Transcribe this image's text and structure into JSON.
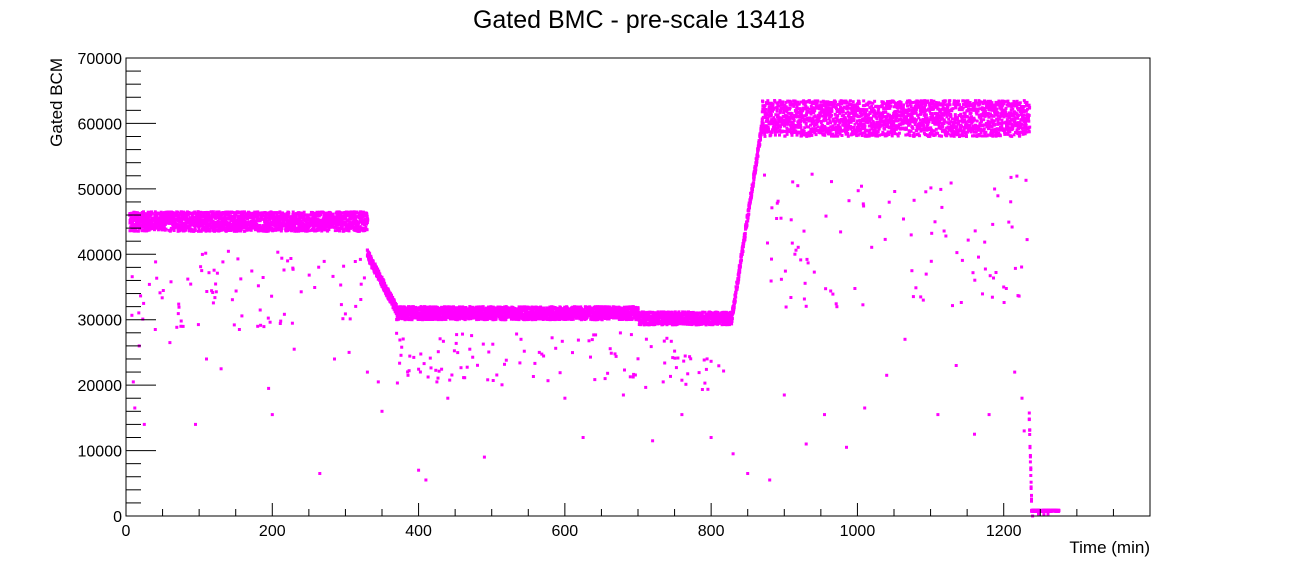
{
  "chart_data": {
    "type": "scatter",
    "title": "Gated BMC - pre-scale 13418",
    "xlabel": "Time (min)",
    "ylabel": "Gated BCM",
    "xlim": [
      0,
      1400
    ],
    "ylim": [
      0,
      70000
    ],
    "x_ticks": [
      0,
      200,
      400,
      600,
      800,
      1000,
      1200
    ],
    "y_ticks": [
      0,
      10000,
      20000,
      30000,
      40000,
      50000,
      60000,
      70000
    ],
    "grid": false,
    "legend": "none",
    "marker_color": "#ff00ff",
    "segments": [
      {
        "x_start": 5,
        "x_end": 330,
        "level": 45000,
        "band": [
          43500,
          46500
        ]
      },
      {
        "x_start": 330,
        "x_end": 370,
        "level_start": 40000,
        "level_end": 31500
      },
      {
        "x_start": 370,
        "x_end": 700,
        "level": 31000,
        "band": [
          30000,
          32000
        ]
      },
      {
        "x_start": 700,
        "x_end": 828,
        "level": 30200,
        "band": [
          29200,
          31200
        ]
      },
      {
        "x_start": 828,
        "x_end": 870,
        "level_start": 30000,
        "level_end": 60000
      },
      {
        "x_start": 870,
        "x_end": 1235,
        "level": 61000,
        "band": [
          58000,
          63500
        ]
      },
      {
        "x_start": 1235,
        "x_end": 1238,
        "level_start": 15000,
        "level_end": 2500
      },
      {
        "x_start": 1238,
        "x_end": 1275,
        "level": 800,
        "band": [
          700,
          900
        ]
      }
    ],
    "outliers": [
      [
        10,
        20500
      ],
      [
        12,
        16500
      ],
      [
        18,
        26000
      ],
      [
        25,
        14000
      ],
      [
        40,
        28500
      ],
      [
        60,
        26500
      ],
      [
        75,
        29000
      ],
      [
        95,
        14000
      ],
      [
        110,
        24000
      ],
      [
        130,
        22500
      ],
      [
        155,
        28500
      ],
      [
        180,
        29000
      ],
      [
        195,
        19500
      ],
      [
        200,
        15500
      ],
      [
        230,
        25500
      ],
      [
        265,
        6500
      ],
      [
        285,
        24000
      ],
      [
        305,
        25000
      ],
      [
        330,
        22000
      ],
      [
        345,
        20500
      ],
      [
        350,
        16000
      ],
      [
        400,
        7000
      ],
      [
        410,
        5500
      ],
      [
        425,
        20500
      ],
      [
        440,
        18000
      ],
      [
        470,
        25500
      ],
      [
        490,
        9000
      ],
      [
        540,
        27000
      ],
      [
        565,
        25000
      ],
      [
        600,
        18000
      ],
      [
        625,
        12000
      ],
      [
        655,
        21000
      ],
      [
        680,
        18500
      ],
      [
        720,
        11500
      ],
      [
        760,
        15500
      ],
      [
        800,
        12000
      ],
      [
        830,
        9500
      ],
      [
        850,
        6500
      ],
      [
        880,
        5500
      ],
      [
        900,
        18500
      ],
      [
        930,
        11000
      ],
      [
        955,
        15500
      ],
      [
        985,
        10500
      ],
      [
        1010,
        16500
      ],
      [
        1040,
        21500
      ],
      [
        1065,
        27000
      ],
      [
        1090,
        33000
      ],
      [
        1110,
        15500
      ],
      [
        1135,
        23000
      ],
      [
        1160,
        12500
      ],
      [
        1180,
        15500
      ],
      [
        1200,
        35000
      ],
      [
        1215,
        22000
      ],
      [
        1225,
        18000
      ],
      [
        1228,
        13000
      ]
    ]
  }
}
